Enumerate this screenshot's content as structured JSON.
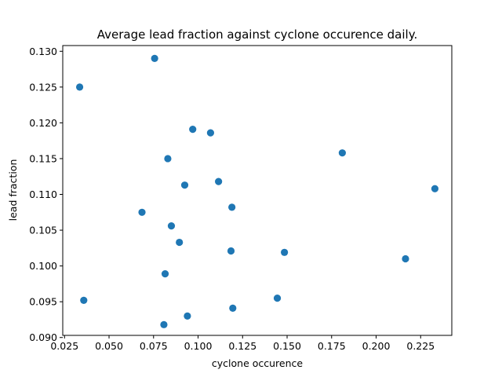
{
  "chart_data": {
    "type": "scatter",
    "title": "Average lead fraction against cyclone occurence daily.",
    "xlabel": "cyclone occurence",
    "ylabel": "lead fraction",
    "xlim": [
      0.024,
      0.2425
    ],
    "ylim": [
      0.0903,
      0.1308
    ],
    "xticks": [
      "0.025",
      "0.050",
      "0.075",
      "0.100",
      "0.125",
      "0.150",
      "0.175",
      "0.200",
      "0.225"
    ],
    "yticks": [
      "0.090",
      "0.095",
      "0.100",
      "0.105",
      "0.110",
      "0.115",
      "0.120",
      "0.125",
      "0.130"
    ],
    "grid": false,
    "marker_color": "#1f77b4",
    "series": [
      {
        "points": [
          {
            "x": 0.0756,
            "y": 0.129
          },
          {
            "x": 0.0335,
            "y": 0.125
          },
          {
            "x": 0.097,
            "y": 0.1191
          },
          {
            "x": 0.107,
            "y": 0.1186
          },
          {
            "x": 0.181,
            "y": 0.1158
          },
          {
            "x": 0.083,
            "y": 0.115
          },
          {
            "x": 0.1115,
            "y": 0.1118
          },
          {
            "x": 0.0925,
            "y": 0.1113
          },
          {
            "x": 0.233,
            "y": 0.1108
          },
          {
            "x": 0.119,
            "y": 0.1082
          },
          {
            "x": 0.0685,
            "y": 0.1075
          },
          {
            "x": 0.085,
            "y": 0.1056
          },
          {
            "x": 0.0895,
            "y": 0.1033
          },
          {
            "x": 0.1185,
            "y": 0.1021
          },
          {
            "x": 0.1485,
            "y": 0.1019
          },
          {
            "x": 0.2165,
            "y": 0.101
          },
          {
            "x": 0.0815,
            "y": 0.0989
          },
          {
            "x": 0.1445,
            "y": 0.0955
          },
          {
            "x": 0.0358,
            "y": 0.0952
          },
          {
            "x": 0.1195,
            "y": 0.0941
          },
          {
            "x": 0.094,
            "y": 0.093
          },
          {
            "x": 0.0808,
            "y": 0.0918
          }
        ]
      }
    ]
  }
}
